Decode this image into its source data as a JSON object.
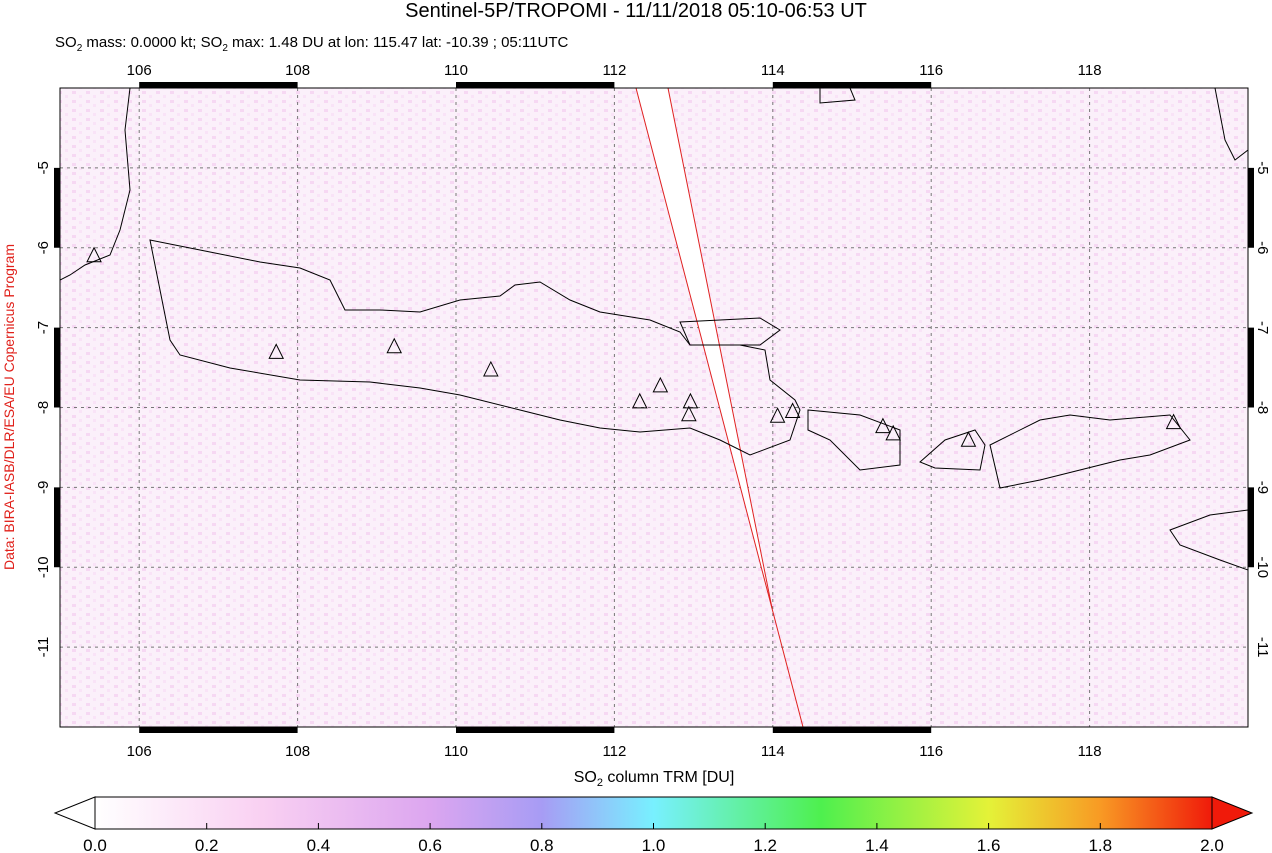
{
  "chart_data": {
    "type": "map",
    "title": "Sentinel-5P/TROPOMI - 11/11/2018 05:10-06:53 UT",
    "subtitle": [
      "SO",
      "2",
      " mass: 0.0000 kt; SO",
      "2",
      " max: 1.48 DU at lon: 115.47 lat: -10.39 ; 05:11UTC"
    ],
    "credit": "Data: BIRA-IASB/DLR/ESA/EU Copernicus Program",
    "xlim": [
      105,
      120
    ],
    "xticks": [
      106,
      108,
      110,
      112,
      114,
      116,
      118
    ],
    "ylim": [
      -12,
      -4
    ],
    "yticks": [
      -5,
      -6,
      -7,
      -8,
      -9,
      -10,
      -11
    ],
    "grid": true,
    "volcanoes": {
      "x": [
        105.43,
        107.73,
        109.22,
        110.44,
        112.32,
        112.58,
        112.96,
        112.94,
        114.06,
        114.25,
        115.39,
        115.52,
        116.47,
        119.06
      ],
      "y": [
        -6.1,
        -7.31,
        -7.24,
        -7.53,
        -7.93,
        -7.73,
        -7.93,
        -8.09,
        -8.11,
        -8.05,
        -8.24,
        -8.33,
        -8.41,
        -8.19
      ]
    },
    "colorbar": {
      "label": [
        "SO",
        "2",
        " column TRM [DU]"
      ],
      "lim": [
        0,
        2
      ],
      "ticks": [
        {
          "value": 0,
          "label": "0.0"
        },
        {
          "value": 0.2,
          "label": "0.2"
        },
        {
          "value": 0.4,
          "label": "0.4"
        },
        {
          "value": 0.6,
          "label": "0.6"
        },
        {
          "value": 0.8,
          "label": "0.8"
        },
        {
          "value": 1.0,
          "label": "1.0"
        },
        {
          "value": 1.2,
          "label": "1.2"
        },
        {
          "value": 1.4,
          "label": "1.4"
        },
        {
          "value": 1.6,
          "label": "1.6"
        },
        {
          "value": 1.8,
          "label": "1.8"
        },
        {
          "value": 2.0,
          "label": "2.0"
        }
      ]
    }
  }
}
